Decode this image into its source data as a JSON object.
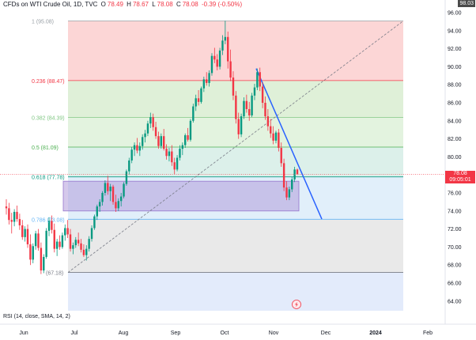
{
  "header": {
    "symbol": "CFDs on WTI Crude Oil, 1D, TVC",
    "open_label": "O",
    "open": "78.49",
    "high_label": "H",
    "high": "78.67",
    "low_label": "L",
    "low": "78.08",
    "close_label": "C",
    "close": "78.08",
    "change": "-0.39 (-0.50%)"
  },
  "corner_value": "98.03",
  "price_tag": {
    "price": "78.08",
    "countdown": "09:05:01"
  },
  "rsi_label": "RSI (14, close, SMA, 14, 2)",
  "chart_data": {
    "type": "candlestick",
    "y_ticks": [
      "96.00",
      "94.00",
      "92.00",
      "90.00",
      "88.00",
      "86.00",
      "84.00",
      "82.00",
      "80.00",
      "78.00",
      "76.00",
      "74.00",
      "72.00",
      "70.00",
      "68.00",
      "66.00",
      "64.00"
    ],
    "x_ticks": [
      "Jun",
      "Jul",
      "Aug",
      "Sep",
      "Oct",
      "Nov",
      "Dec",
      "2024",
      "Feb"
    ],
    "fib_levels": [
      {
        "label": "1 (95.08)",
        "price": 95.08,
        "color": "#9aa0a6",
        "fill": "#fcd6d6"
      },
      {
        "label": "0.236 (88.47)",
        "price": 88.47,
        "color": "#f23645",
        "fill": "#dff0d8"
      },
      {
        "label": "0.382 (84.39)",
        "price": 84.39,
        "color": "#81c784",
        "fill": "#e3f3df"
      },
      {
        "label": "0.5 (81.09)",
        "price": 81.09,
        "color": "#4caf50",
        "fill": "#dcf0ea"
      },
      {
        "label": "0.618 (77.78)",
        "price": 77.78,
        "color": "#089981",
        "fill": "#e1effa"
      },
      {
        "label": "0.786 (73.08)",
        "price": 73.08,
        "color": "#64b5f6",
        "fill": "#e9e9e9"
      },
      {
        "label": "(67.18)",
        "price": 67.18,
        "color": "#787b86",
        "fill": "#e3ebfb"
      }
    ],
    "candles": [
      [
        74.5,
        75.3,
        73.6,
        74.3
      ],
      [
        74.3,
        74.9,
        72.5,
        73.0
      ],
      [
        73.0,
        73.8,
        71.5,
        72.8
      ],
      [
        72.8,
        74.2,
        72.3,
        73.9
      ],
      [
        73.9,
        74.6,
        72.8,
        73.1
      ],
      [
        73.1,
        73.7,
        71.9,
        72.4
      ],
      [
        72.4,
        73.0,
        70.8,
        71.1
      ],
      [
        71.1,
        72.3,
        70.6,
        72.0
      ],
      [
        72.0,
        72.5,
        69.9,
        70.3
      ],
      [
        70.3,
        71.4,
        68.0,
        68.6
      ],
      [
        68.6,
        70.4,
        68.2,
        70.1
      ],
      [
        70.1,
        71.8,
        69.7,
        71.5
      ],
      [
        71.5,
        72.0,
        69.6,
        69.9
      ],
      [
        69.9,
        70.5,
        67.0,
        67.4
      ],
      [
        67.4,
        69.2,
        67.1,
        68.9
      ],
      [
        68.9,
        72.1,
        68.7,
        71.8
      ],
      [
        71.8,
        73.3,
        71.2,
        72.9
      ],
      [
        72.9,
        73.5,
        71.5,
        71.9
      ],
      [
        71.9,
        72.6,
        69.4,
        69.8
      ],
      [
        69.8,
        70.9,
        69.0,
        70.6
      ],
      [
        70.6,
        71.3,
        69.7,
        70.0
      ],
      [
        70.0,
        71.6,
        69.8,
        71.3
      ],
      [
        71.3,
        72.5,
        70.7,
        72.1
      ],
      [
        72.1,
        73.0,
        71.0,
        71.4
      ],
      [
        71.4,
        72.0,
        69.5,
        69.8
      ],
      [
        69.8,
        70.5,
        69.2,
        70.2
      ],
      [
        70.2,
        71.1,
        69.9,
        70.8
      ],
      [
        70.8,
        71.6,
        70.1,
        70.4
      ],
      [
        70.4,
        70.9,
        69.4,
        69.7
      ],
      [
        69.7,
        70.3,
        68.9,
        69.1
      ],
      [
        69.1,
        70.2,
        68.5,
        69.8
      ],
      [
        69.8,
        71.2,
        69.5,
        70.9
      ],
      [
        70.9,
        72.4,
        70.6,
        72.1
      ],
      [
        72.1,
        73.6,
        71.9,
        73.4
      ],
      [
        73.4,
        74.7,
        73.0,
        74.5
      ],
      [
        74.5,
        75.3,
        73.9,
        75.0
      ],
      [
        75.0,
        76.2,
        74.6,
        76.0
      ],
      [
        76.0,
        77.4,
        75.7,
        77.1
      ],
      [
        77.1,
        77.9,
        75.8,
        76.2
      ],
      [
        76.2,
        77.0,
        75.1,
        76.7
      ],
      [
        76.7,
        76.9,
        74.7,
        75.0
      ],
      [
        75.0,
        75.8,
        73.9,
        74.3
      ],
      [
        74.3,
        75.4,
        74.0,
        75.1
      ],
      [
        75.1,
        76.0,
        74.5,
        75.6
      ],
      [
        75.6,
        77.2,
        75.4,
        77.0
      ],
      [
        77.0,
        78.6,
        76.8,
        78.4
      ],
      [
        78.4,
        79.9,
        78.0,
        79.6
      ],
      [
        79.6,
        81.1,
        79.3,
        80.8
      ],
      [
        80.8,
        81.6,
        80.1,
        81.3
      ],
      [
        81.3,
        82.1,
        80.4,
        80.7
      ],
      [
        80.7,
        81.6,
        80.1,
        81.2
      ],
      [
        81.2,
        82.5,
        80.8,
        82.2
      ],
      [
        82.2,
        83.0,
        81.6,
        82.6
      ],
      [
        82.6,
        84.0,
        82.3,
        83.7
      ],
      [
        83.7,
        84.9,
        83.2,
        84.4
      ],
      [
        84.4,
        84.8,
        82.9,
        83.3
      ],
      [
        83.3,
        83.9,
        82.0,
        82.3
      ],
      [
        82.3,
        82.8,
        80.9,
        81.2
      ],
      [
        81.2,
        82.6,
        80.9,
        82.3
      ],
      [
        82.3,
        83.1,
        80.7,
        80.9
      ],
      [
        80.9,
        81.4,
        79.7,
        80.1
      ],
      [
        80.1,
        81.0,
        79.5,
        80.6
      ],
      [
        80.6,
        81.3,
        79.0,
        79.4
      ],
      [
        79.4,
        79.9,
        78.1,
        78.6
      ],
      [
        78.6,
        80.2,
        78.4,
        79.9
      ],
      [
        79.9,
        81.3,
        79.6,
        80.9
      ],
      [
        80.9,
        81.6,
        80.2,
        81.3
      ],
      [
        81.3,
        82.6,
        81.0,
        82.4
      ],
      [
        82.4,
        83.2,
        81.7,
        81.9
      ],
      [
        81.9,
        84.2,
        81.7,
        84.0
      ],
      [
        84.0,
        85.9,
        83.8,
        85.6
      ],
      [
        85.6,
        86.9,
        85.1,
        86.5
      ],
      [
        86.5,
        87.4,
        85.7,
        86.1
      ],
      [
        86.1,
        87.8,
        85.9,
        87.6
      ],
      [
        87.6,
        88.9,
        87.2,
        88.6
      ],
      [
        88.6,
        89.4,
        87.9,
        88.2
      ],
      [
        88.2,
        89.6,
        87.8,
        89.3
      ],
      [
        89.3,
        91.5,
        89.0,
        91.2
      ],
      [
        91.2,
        92.1,
        90.4,
        90.8
      ],
      [
        90.8,
        91.4,
        89.6,
        90.0
      ],
      [
        90.0,
        92.1,
        89.7,
        91.8
      ],
      [
        91.8,
        93.5,
        91.3,
        92.9
      ],
      [
        92.9,
        95.1,
        92.5,
        93.3
      ],
      [
        93.3,
        93.9,
        89.8,
        90.6
      ],
      [
        90.6,
        91.9,
        88.4,
        88.8
      ],
      [
        88.8,
        89.5,
        86.3,
        86.8
      ],
      [
        86.8,
        87.3,
        83.7,
        84.2
      ],
      [
        84.2,
        84.9,
        82.0,
        82.5
      ],
      [
        82.5,
        84.8,
        82.2,
        84.5
      ],
      [
        84.5,
        86.6,
        84.2,
        86.2
      ],
      [
        86.2,
        86.9,
        84.9,
        85.3
      ],
      [
        85.3,
        86.1,
        84.0,
        84.6
      ],
      [
        84.6,
        87.1,
        84.4,
        86.8
      ],
      [
        86.8,
        88.1,
        86.3,
        87.7
      ],
      [
        87.7,
        89.8,
        87.4,
        89.4
      ],
      [
        89.4,
        89.9,
        87.3,
        87.8
      ],
      [
        87.8,
        88.3,
        85.4,
        86.0
      ],
      [
        86.0,
        86.7,
        84.1,
        84.5
      ],
      [
        84.5,
        85.3,
        82.9,
        83.4
      ],
      [
        83.4,
        84.2,
        82.1,
        82.6
      ],
      [
        82.6,
        83.4,
        81.4,
        81.8
      ],
      [
        81.8,
        82.9,
        81.5,
        82.7
      ],
      [
        82.7,
        83.1,
        80.6,
        81.0
      ],
      [
        81.0,
        81.6,
        78.9,
        79.3
      ],
      [
        79.3,
        79.8,
        76.2,
        76.6
      ],
      [
        76.6,
        77.3,
        75.2,
        75.5
      ],
      [
        75.5,
        76.7,
        75.2,
        76.4
      ],
      [
        76.4,
        77.8,
        76.1,
        77.5
      ],
      [
        77.5,
        78.9,
        77.2,
        78.6
      ],
      [
        78.6,
        78.7,
        78.0,
        78.1
      ]
    ]
  }
}
